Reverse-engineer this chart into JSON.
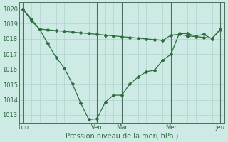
{
  "xlabel": "Pression niveau de la mer( hPa )",
  "bg_color": "#ceeae4",
  "grid_color": "#a8cec8",
  "line_color": "#2d6e3e",
  "vline_color": "#4a7060",
  "ylim": [
    1012.5,
    1020.4
  ],
  "xlim": [
    -0.5,
    24.5
  ],
  "xtick_labels": [
    "Lun",
    "Ven",
    "Mar",
    "Mer",
    "Jeu"
  ],
  "xtick_positions": [
    0,
    9,
    12,
    18,
    24
  ],
  "ytick_values": [
    1013,
    1014,
    1015,
    1016,
    1017,
    1018,
    1019,
    1020
  ],
  "line1_x": [
    0,
    1,
    2,
    3,
    4,
    5,
    6,
    7,
    8,
    9,
    10,
    11,
    12,
    13,
    14,
    15,
    16,
    17,
    18,
    19,
    20,
    21,
    22,
    23,
    24
  ],
  "line1_y": [
    1019.95,
    1019.2,
    1018.65,
    1017.7,
    1016.8,
    1016.1,
    1015.05,
    1013.8,
    1012.7,
    1012.75,
    1013.85,
    1014.3,
    1014.3,
    1015.05,
    1015.5,
    1015.85,
    1015.95,
    1016.6,
    1017.0,
    1018.35,
    1018.35,
    1018.2,
    1018.3,
    1018.0,
    1018.65
  ],
  "line2_x": [
    0,
    1,
    2,
    3,
    4,
    5,
    6,
    7,
    8,
    9,
    10,
    11,
    12,
    13,
    14,
    15,
    16,
    17,
    18,
    19,
    20,
    21,
    22,
    23,
    24
  ],
  "line2_y": [
    1019.95,
    1019.3,
    1018.65,
    1018.6,
    1018.55,
    1018.5,
    1018.45,
    1018.4,
    1018.35,
    1018.3,
    1018.25,
    1018.2,
    1018.15,
    1018.1,
    1018.05,
    1018.0,
    1017.95,
    1017.9,
    1018.25,
    1018.3,
    1018.2,
    1018.15,
    1018.1,
    1018.05,
    1018.6
  ],
  "vline_positions": [
    0,
    9,
    12,
    18,
    24
  ],
  "marker_style": "D",
  "marker_size": 2.0,
  "line_width": 0.9,
  "tick_fontsize": 6.0,
  "xlabel_fontsize": 7.0
}
